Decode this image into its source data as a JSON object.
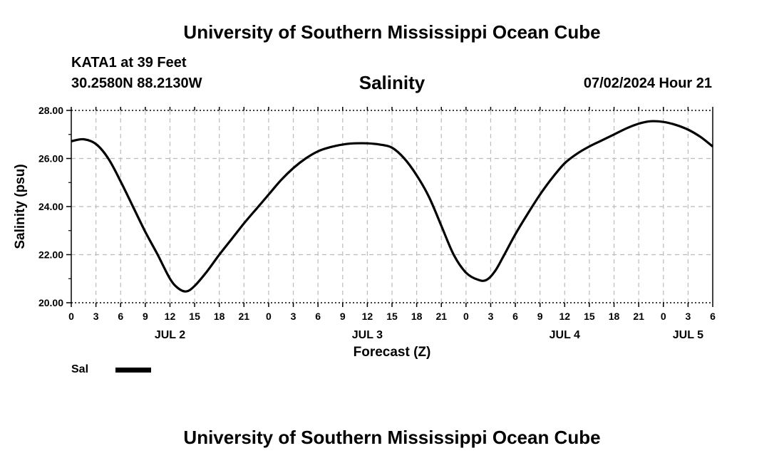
{
  "page": {
    "title_top": "University of Southern Mississippi Ocean Cube",
    "title_bottom": "University of Southern Mississippi Ocean Cube",
    "station": "KATA1 at 39 Feet",
    "coordinates": "30.2580N  88.2130W",
    "datetime": "07/02/2024 Hour 21"
  },
  "chart_data": {
    "type": "line",
    "title": "Salinity",
    "xlabel": "Forecast (Z)",
    "ylabel": "Salinity (psu)",
    "ylim": [
      20,
      28
    ],
    "xlim": [
      0,
      78
    ],
    "x_unit": "hours from JUL 2 00Z... offset: 0 = JUL 1 18Z",
    "y_ticks": [
      "20.00",
      "22.00",
      "24.00",
      "26.00",
      "28.00"
    ],
    "y_tick_values": [
      20,
      22,
      24,
      26,
      28
    ],
    "x_tick_labels": [
      "0",
      "3",
      "6",
      "9",
      "12",
      "15",
      "18",
      "21",
      "0",
      "3",
      "6",
      "9",
      "12",
      "15",
      "18",
      "21",
      "0",
      "3",
      "6",
      "9",
      "12",
      "15",
      "18",
      "21",
      "0",
      "3",
      "6"
    ],
    "date_labels": [
      {
        "label": "JUL 2",
        "hour": 12
      },
      {
        "label": "JUL 3",
        "hour": 36
      },
      {
        "label": "JUL 4",
        "hour": 60
      },
      {
        "label": "JUL 5",
        "hour": 75
      }
    ],
    "grid": true,
    "legend": [
      {
        "name": "Sal",
        "color": "#000000"
      }
    ],
    "series": [
      {
        "name": "Sal",
        "color": "#000000",
        "x": [
          0,
          1.5,
          3,
          4.5,
          6,
          7.5,
          9,
          10.5,
          12,
          13,
          14,
          15,
          16.5,
          18,
          19.5,
          21,
          22.5,
          24,
          25.5,
          27,
          28.5,
          30,
          31.5,
          33,
          34.5,
          36,
          37.5,
          39,
          40.5,
          42,
          43.5,
          45,
          46.5,
          48,
          49.5,
          50.5,
          51.5,
          52.5,
          54,
          55.5,
          57,
          58.5,
          60,
          61.5,
          63,
          64.5,
          66,
          67.5,
          69,
          70.5,
          72,
          73.5,
          75,
          76.5,
          78
        ],
        "values": [
          26.72,
          26.8,
          26.6,
          26.0,
          25.05,
          24.0,
          22.95,
          22.0,
          21.0,
          20.6,
          20.47,
          20.7,
          21.3,
          22.0,
          22.65,
          23.3,
          23.9,
          24.5,
          25.1,
          25.6,
          26.0,
          26.3,
          26.47,
          26.58,
          26.63,
          26.63,
          26.58,
          26.45,
          26.0,
          25.3,
          24.4,
          23.2,
          22.0,
          21.25,
          20.95,
          20.95,
          21.3,
          21.9,
          22.85,
          23.7,
          24.5,
          25.2,
          25.8,
          26.2,
          26.5,
          26.75,
          27.0,
          27.25,
          27.45,
          27.55,
          27.52,
          27.4,
          27.2,
          26.9,
          26.5
        ]
      }
    ]
  }
}
